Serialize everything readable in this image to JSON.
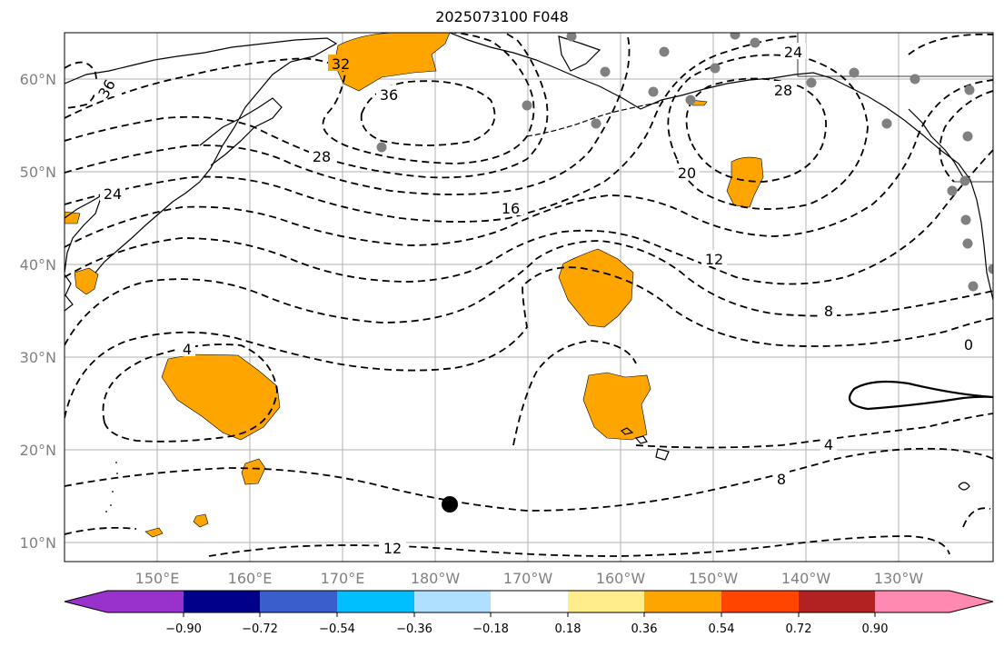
{
  "title": "2025073100 F048",
  "map": {
    "lat_labels": [
      "60°N",
      "50°N",
      "40°N",
      "30°N",
      "20°N",
      "10°N"
    ],
    "lon_labels": [
      "150°E",
      "160°E",
      "170°E",
      "180°W",
      "170°W",
      "160°W",
      "150°W",
      "140°W",
      "130°W"
    ],
    "contour_labels": [
      "36",
      "32",
      "36",
      "28",
      "24",
      "24",
      "28",
      "20",
      "16",
      "12",
      "8",
      "4",
      "0",
      "4",
      "8",
      "12"
    ],
    "anomaly_fill_color": "#ffa500",
    "station_color": "#808080",
    "marker_color": "#000000"
  },
  "colorbar": {
    "ticks": [
      "−0.90",
      "−0.72",
      "−0.54",
      "−0.36",
      "−0.18",
      "0.18",
      "0.36",
      "0.54",
      "0.72",
      "0.90"
    ],
    "colors": [
      "#9932cc",
      "#00008b",
      "#3a5fcd",
      "#00bfff",
      "#b0e0ff",
      "#ffffff",
      "#ffec8b",
      "#ffa500",
      "#ff4500",
      "#b22222",
      "#ff89b0"
    ]
  }
}
